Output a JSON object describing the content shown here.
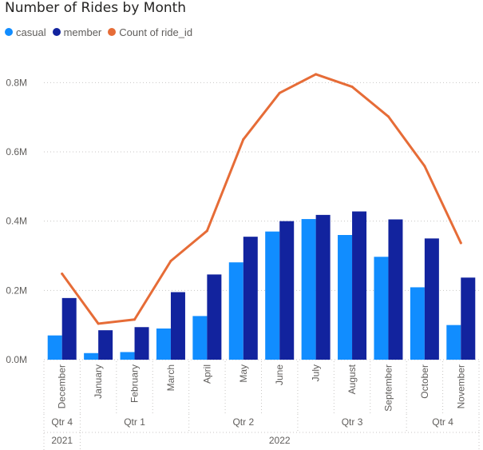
{
  "chart_data": {
    "type": "bar",
    "title": "Number of Rides by Month",
    "categories": [
      "December",
      "January",
      "February",
      "March",
      "April",
      "May",
      "June",
      "July",
      "August",
      "September",
      "October",
      "November"
    ],
    "series": [
      {
        "name": "casual",
        "type": "bar",
        "color": "#118DFF",
        "values": [
          70000,
          19000,
          22000,
          90000,
          126000,
          281000,
          370000,
          406000,
          360000,
          297000,
          209000,
          100000
        ]
      },
      {
        "name": "member",
        "type": "bar",
        "color": "#12239E",
        "values": [
          178000,
          85000,
          94000,
          195000,
          246000,
          355000,
          400000,
          418000,
          428000,
          405000,
          350000,
          237000
        ]
      },
      {
        "name": "Count of ride_id",
        "type": "line",
        "color": "#E66C37",
        "values": [
          248000,
          104000,
          116000,
          285000,
          372000,
          636000,
          770000,
          824000,
          788000,
          702000,
          559000,
          337000
        ]
      }
    ],
    "y_ticks": [
      "0.0M",
      "0.2M",
      "0.4M",
      "0.6M",
      "0.8M"
    ],
    "ylim": [
      0,
      900000
    ],
    "quarters": [
      {
        "label": "Qtr 4",
        "count": 1
      },
      {
        "label": "Qtr 1",
        "count": 3
      },
      {
        "label": "Qtr 2",
        "count": 3
      },
      {
        "label": "Qtr 3",
        "count": 3
      },
      {
        "label": "Qtr 4",
        "count": 2
      }
    ],
    "years": [
      {
        "label": "2021",
        "count": 1
      },
      {
        "label": "2022",
        "count": 11
      }
    ],
    "grid": true,
    "legend_position": "top-left"
  }
}
